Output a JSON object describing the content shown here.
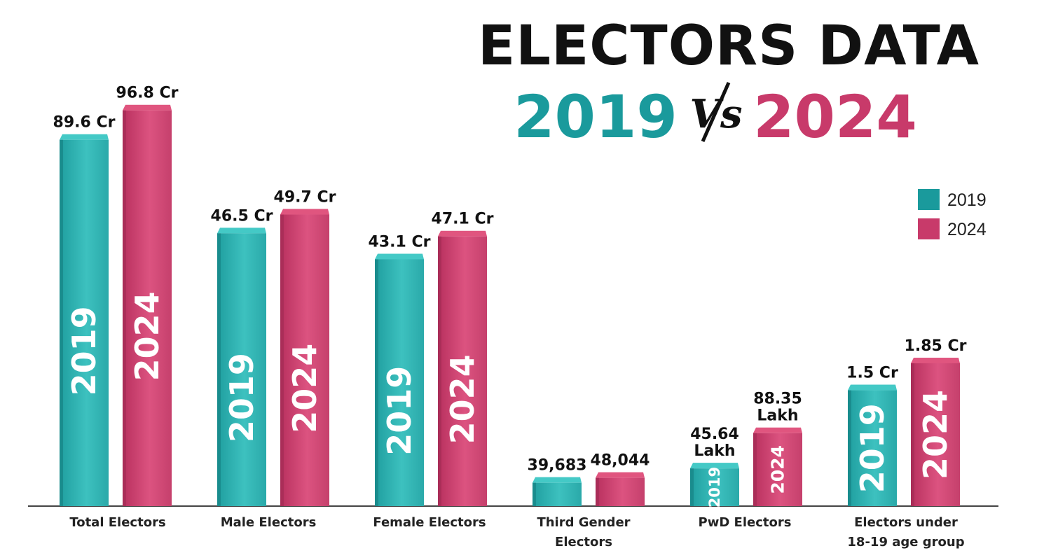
{
  "header": {
    "title": "ELECTORS DATA",
    "year_left": "2019",
    "vs": "Vs",
    "year_right": "2024"
  },
  "legend": {
    "items": [
      {
        "label": "2019",
        "color": "#1a9a9c"
      },
      {
        "label": "2024",
        "color": "#c83a6a"
      }
    ],
    "placement": "right"
  },
  "colors": {
    "teal": "#1a9a9c",
    "teal_light": "#44c9c6",
    "pink": "#c83a6a",
    "pink_light": "#e0557f",
    "title": "#111111",
    "text": "#222222"
  },
  "chart_data": {
    "type": "bar",
    "categories": [
      [
        "Total Electors"
      ],
      [
        "Male Electors"
      ],
      [
        "Female Electors"
      ],
      [
        "Third Gender",
        "Electors"
      ],
      [
        "PwD Electors"
      ],
      [
        "Electors under",
        "18-19 age group"
      ]
    ],
    "series": [
      {
        "name": "2019",
        "values": [
          89.6,
          46.5,
          43.1,
          39683,
          45.64,
          1.5
        ],
        "units": [
          "Cr",
          "Cr",
          "Cr",
          "count",
          "Lakh",
          "Cr"
        ],
        "labels": [
          [
            "89.6 Cr"
          ],
          [
            "46.5 Cr"
          ],
          [
            "43.1 Cr"
          ],
          [
            "39,683"
          ],
          [
            "45.64",
            "Lakh"
          ],
          [
            "1.5 Cr"
          ]
        ],
        "bar_text": [
          "2019",
          "2019",
          "2019",
          "",
          "2019",
          "2019"
        ]
      },
      {
        "name": "2024",
        "values": [
          96.8,
          49.7,
          47.1,
          48044,
          88.35,
          1.85
        ],
        "units": [
          "Cr",
          "Cr",
          "Cr",
          "count",
          "Lakh",
          "Cr"
        ],
        "labels": [
          [
            "96.8 Cr"
          ],
          [
            "49.7 Cr"
          ],
          [
            "47.1 Cr"
          ],
          [
            "48,044"
          ],
          [
            "88.35",
            "Lakh"
          ],
          [
            "1.85 Cr"
          ]
        ],
        "bar_text": [
          "2024",
          "2024",
          "2024",
          "",
          "2024",
          "2024"
        ]
      }
    ],
    "xlabel": "",
    "ylabel": "",
    "grid": false,
    "legend": "right"
  }
}
